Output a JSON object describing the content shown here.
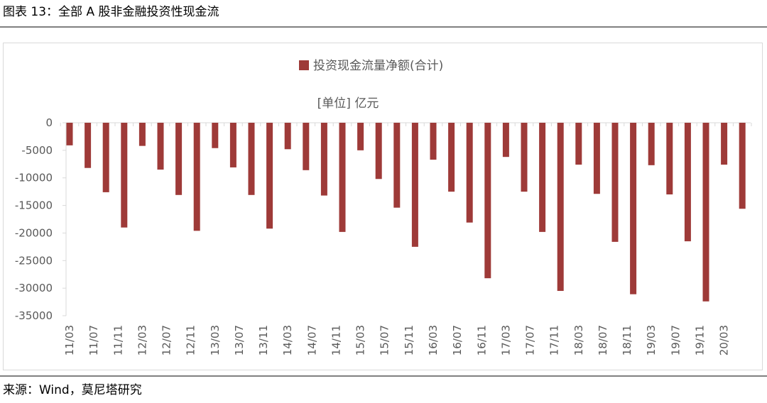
{
  "header": {
    "title": "图表 13：全部 A 股非金融投资性现金流"
  },
  "chart_data": {
    "type": "bar",
    "legend": "投资现金流量净额(合计)",
    "subtitle": "[单位] 亿元",
    "categories": [
      null,
      null,
      null,
      null,
      null,
      null,
      null,
      null,
      null,
      null,
      null,
      null,
      null,
      null,
      null,
      null,
      null,
      null,
      null,
      null,
      null,
      null,
      null,
      null,
      null,
      null,
      null,
      null,
      null,
      null,
      null,
      null,
      null,
      null,
      null,
      null,
      null,
      null
    ],
    "xticks": [
      "11/03",
      "11/07",
      "11/11",
      "12/03",
      "12/07",
      "12/11",
      "13/03",
      "13/07",
      "13/11",
      "14/03",
      "14/07",
      "14/11",
      "15/03",
      "15/07",
      "15/11",
      "16/03",
      "16/07",
      "16/11",
      "17/03",
      "17/07",
      "17/11",
      "18/03",
      "18/07",
      "18/11",
      "19/03",
      "19/07",
      "19/11",
      "20/03"
    ],
    "values": [
      -4100,
      -8200,
      -12600,
      -19000,
      -4200,
      -8500,
      -13100,
      -19600,
      -4600,
      -8100,
      -13100,
      -19200,
      -4800,
      -8600,
      -13200,
      -19800,
      -5000,
      -10200,
      -15400,
      -22500,
      -6700,
      -12500,
      -18100,
      -28200,
      -6200,
      -12500,
      -19800,
      -30500,
      -7600,
      -12900,
      -21600,
      -31100,
      -7700,
      -13000,
      -21500,
      -32400,
      -7600,
      -15600
    ],
    "color": "#9e3a38",
    "ylim": [
      -35000,
      0
    ],
    "yticks": [
      0,
      -5000,
      -10000,
      -15000,
      -20000,
      -25000,
      -30000,
      -35000
    ]
  },
  "footer": {
    "source": "来源：Wind，莫尼塔研究"
  }
}
